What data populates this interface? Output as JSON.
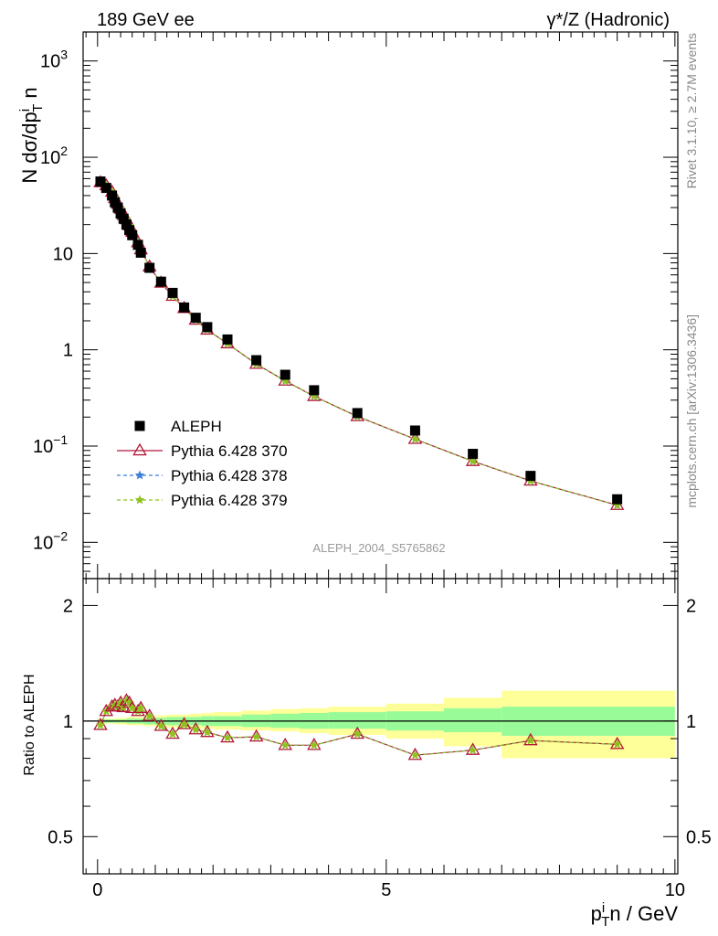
{
  "header": {
    "left": "189 GeV ee",
    "right": "γ*/Z (Hadronic)"
  },
  "side": {
    "rivet": "Rivet 3.1.10, ≥ 2.7M events",
    "mcplots": "mcplots.cern.ch [arXiv:1306.3436]"
  },
  "watermark": "ALEPH_2004_S5765862",
  "main_ylabel": "N dσ/dp_T^i n",
  "ratio_ylabel": "Ratio to ALEPH",
  "xlabel": "p_T^i n / GeV",
  "x_ticks": [
    "0",
    "5",
    "10"
  ],
  "main_y_ticks": [
    "10^-2",
    "10^-1",
    "1",
    "10",
    "10^2",
    "10^3"
  ],
  "ratio_y_ticks": [
    "0.5",
    "1",
    "2"
  ],
  "legend": [
    {
      "label": "ALEPH",
      "color": "#000000",
      "marker": "square",
      "line": "none"
    },
    {
      "label": "Pythia 6.428 370",
      "color": "#b2163a",
      "marker": "open-triangle",
      "line": "solid"
    },
    {
      "label": "Pythia 6.428 378",
      "color": "#3a7fd9",
      "marker": "star",
      "line": "dashed"
    },
    {
      "label": "Pythia 6.428 379",
      "color": "#8fc21f",
      "marker": "star",
      "line": "dashed"
    }
  ],
  "colors": {
    "band_inner": "#98fb98",
    "band_outer": "#ffff99",
    "ratio_ref": "#000000"
  },
  "chart_data": [
    {
      "type": "scatter",
      "panel": "main",
      "yscale": "log",
      "xlim": [
        -0.25,
        10.05
      ],
      "ylim": [
        0.0042,
        2000
      ],
      "xlabel": "p_T^i n / GeV",
      "ylabel": "N dσ/dp_T^i n",
      "legend_position": "bottom-left",
      "x": [
        0.05,
        0.15,
        0.25,
        0.3,
        0.35,
        0.4,
        0.45,
        0.5,
        0.55,
        0.6,
        0.7,
        0.75,
        0.9,
        1.1,
        1.3,
        1.5,
        1.7,
        1.9,
        2.25,
        2.75,
        3.25,
        3.75,
        4.5,
        5.5,
        6.5,
        7.5,
        9.0
      ],
      "series": [
        {
          "name": "ALEPH",
          "values": [
            56,
            48,
            40,
            34,
            30,
            26,
            23,
            20,
            17.5,
            15.5,
            12.3,
            10.2,
            7.1,
            5.1,
            3.9,
            2.75,
            2.15,
            1.72,
            1.28,
            0.78,
            0.55,
            0.38,
            0.22,
            0.145,
            0.083,
            0.049,
            0.028
          ]
        },
        {
          "name": "Pythia 6.428 370",
          "values": [
            54.6,
            50.9,
            43.6,
            37.5,
            32.7,
            29,
            25,
            22.6,
            19.5,
            16.7,
            13,
            11,
            7.3,
            4.95,
            3.61,
            2.7,
            2.04,
            1.61,
            1.16,
            0.71,
            0.475,
            0.329,
            0.203,
            0.118,
            0.0695,
            0.0435,
            0.0243
          ]
        },
        {
          "name": "Pythia 6.428 378",
          "values": [
            54.6,
            50.9,
            43.6,
            37.5,
            32.7,
            29,
            25,
            22.6,
            19.5,
            16.7,
            13,
            11,
            7.3,
            4.95,
            3.61,
            2.7,
            2.04,
            1.61,
            1.16,
            0.71,
            0.475,
            0.329,
            0.203,
            0.118,
            0.0695,
            0.0435,
            0.0243
          ]
        },
        {
          "name": "Pythia 6.428 379",
          "values": [
            54.6,
            50.9,
            43.6,
            37.5,
            32.7,
            29,
            25,
            22.6,
            19.5,
            16.7,
            13,
            11,
            7.3,
            4.95,
            3.61,
            2.7,
            2.04,
            1.61,
            1.16,
            0.71,
            0.475,
            0.329,
            0.203,
            0.118,
            0.0695,
            0.0435,
            0.0243
          ]
        }
      ]
    },
    {
      "type": "line",
      "panel": "ratio",
      "yscale": "log",
      "xlim": [
        -0.25,
        10.05
      ],
      "ylim": [
        0.4,
        2.35
      ],
      "xlabel": "p_T^i n / GeV",
      "ylabel": "Ratio to ALEPH",
      "x": [
        0.05,
        0.15,
        0.25,
        0.3,
        0.35,
        0.4,
        0.45,
        0.5,
        0.55,
        0.6,
        0.7,
        0.75,
        0.9,
        1.1,
        1.3,
        1.5,
        1.7,
        1.9,
        2.25,
        2.75,
        3.25,
        3.75,
        4.5,
        5.5,
        6.5,
        7.5,
        9.0
      ],
      "series": [
        {
          "name": "Pythia 6.428 370",
          "values": [
            0.975,
            1.06,
            1.09,
            1.1,
            1.09,
            1.115,
            1.085,
            1.13,
            1.115,
            1.08,
            1.06,
            1.08,
            1.03,
            0.97,
            0.925,
            0.98,
            0.95,
            0.935,
            0.905,
            0.91,
            0.865,
            0.865,
            0.925,
            0.815,
            0.84,
            0.89,
            0.87
          ]
        }
      ],
      "bands": {
        "edges": [
          0,
          0.1,
          0.2,
          0.3,
          0.4,
          0.5,
          0.6,
          0.8,
          1.0,
          1.2,
          1.4,
          1.6,
          1.8,
          2.0,
          2.5,
          3.0,
          3.5,
          4.0,
          5.0,
          6.0,
          7.0,
          10.0
        ],
        "inner_low": [
          0.99,
          0.99,
          0.99,
          0.99,
          0.99,
          0.985,
          0.985,
          0.98,
          0.98,
          0.975,
          0.975,
          0.975,
          0.97,
          0.97,
          0.965,
          0.96,
          0.955,
          0.955,
          0.945,
          0.935,
          0.915
        ],
        "inner_high": [
          1.01,
          1.01,
          1.01,
          1.01,
          1.01,
          1.015,
          1.015,
          1.02,
          1.02,
          1.025,
          1.025,
          1.025,
          1.03,
          1.03,
          1.04,
          1.045,
          1.05,
          1.055,
          1.06,
          1.08,
          1.09
        ],
        "outer_low": [
          0.985,
          0.985,
          0.985,
          0.98,
          0.98,
          0.975,
          0.975,
          0.97,
          0.965,
          0.96,
          0.96,
          0.955,
          0.955,
          0.95,
          0.945,
          0.94,
          0.93,
          0.92,
          0.9,
          0.86,
          0.8
        ],
        "outer_high": [
          1.015,
          1.015,
          1.015,
          1.02,
          1.02,
          1.025,
          1.025,
          1.03,
          1.035,
          1.04,
          1.04,
          1.045,
          1.05,
          1.055,
          1.065,
          1.075,
          1.08,
          1.09,
          1.11,
          1.15,
          1.2
        ]
      }
    }
  ]
}
